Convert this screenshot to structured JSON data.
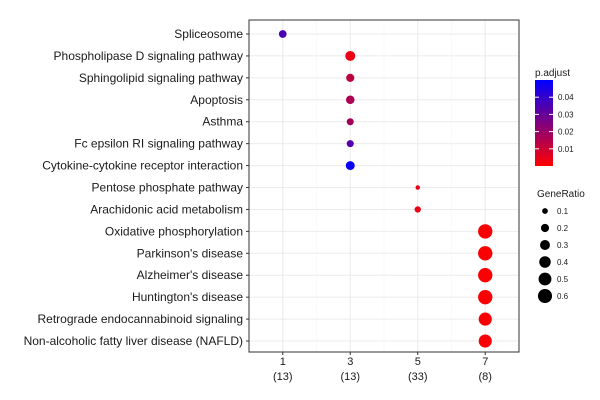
{
  "chart_data": {
    "type": "scatter",
    "categories": [
      "Spliceosome",
      "Phospholipase D signaling pathway",
      "Sphingolipid signaling pathway",
      "Apoptosis",
      "Asthma",
      "Fc epsilon RI signaling pathway",
      "Cytokine-cytokine receptor interaction",
      "Pentose phosphate pathway",
      "Arachidonic acid metabolism",
      "Oxidative phosphorylation",
      "Parkinson's disease",
      "Alzheimer's disease",
      "Huntington's disease",
      "Retrograde endocannabinoid signaling",
      "Non-alcoholic fatty liver disease (NAFLD)"
    ],
    "x_ticks": [
      {
        "line1": "1",
        "line2": "(13)",
        "value": 1
      },
      {
        "line1": "3",
        "line2": "(13)",
        "value": 3
      },
      {
        "line1": "5",
        "line2": "(33)",
        "value": 5
      },
      {
        "line1": "7",
        "line2": "(8)",
        "value": 7
      }
    ],
    "xlim": [
      0,
      8
    ],
    "points": [
      {
        "category": "Spliceosome",
        "x": 1,
        "gene_ratio": 0.18,
        "p_adjust": 0.035
      },
      {
        "category": "Phospholipase D signaling pathway",
        "x": 3,
        "gene_ratio": 0.3,
        "p_adjust": 0.004
      },
      {
        "category": "Sphingolipid signaling pathway",
        "x": 3,
        "gene_ratio": 0.2,
        "p_adjust": 0.013
      },
      {
        "category": "Apoptosis",
        "x": 3,
        "gene_ratio": 0.22,
        "p_adjust": 0.016
      },
      {
        "category": "Asthma",
        "x": 3,
        "gene_ratio": 0.15,
        "p_adjust": 0.018
      },
      {
        "category": "Fc epsilon RI signaling pathway",
        "x": 3,
        "gene_ratio": 0.15,
        "p_adjust": 0.034
      },
      {
        "category": "Cytokine-cytokine receptor interaction",
        "x": 3,
        "gene_ratio": 0.24,
        "p_adjust": 0.048
      },
      {
        "category": "Pentose phosphate pathway",
        "x": 5,
        "gene_ratio": 0.06,
        "p_adjust": 0.004
      },
      {
        "category": "Arachidonic acid metabolism",
        "x": 5,
        "gene_ratio": 0.12,
        "p_adjust": 0.004
      },
      {
        "category": "Oxidative phosphorylation",
        "x": 7,
        "gene_ratio": 0.62,
        "p_adjust": 0.001
      },
      {
        "category": "Parkinson's disease",
        "x": 7,
        "gene_ratio": 0.62,
        "p_adjust": 0.001
      },
      {
        "category": "Alzheimer's disease",
        "x": 7,
        "gene_ratio": 0.62,
        "p_adjust": 0.001
      },
      {
        "category": "Huntington's disease",
        "x": 7,
        "gene_ratio": 0.62,
        "p_adjust": 0.001
      },
      {
        "category": "Retrograde endocannabinoid signaling",
        "x": 7,
        "gene_ratio": 0.52,
        "p_adjust": 0.001
      },
      {
        "category": "Non-alcoholic fatty liver disease (NAFLD)",
        "x": 7,
        "gene_ratio": 0.52,
        "p_adjust": 0.001
      }
    ],
    "color_legend": {
      "title": "p.adjust",
      "range": [
        0,
        0.05
      ],
      "ticks": [
        {
          "label": "0.04",
          "value": 0.04
        },
        {
          "label": "0.03",
          "value": 0.03
        },
        {
          "label": "0.02",
          "value": 0.02
        },
        {
          "label": "0.01",
          "value": 0.01
        }
      ],
      "low_color": "#ff0000",
      "high_color": "#0000ff"
    },
    "size_legend": {
      "title": "GeneRatio",
      "entries": [
        {
          "label": "0.1",
          "value": 0.1
        },
        {
          "label": "0.2",
          "value": 0.2
        },
        {
          "label": "0.3",
          "value": 0.3
        },
        {
          "label": "0.4",
          "value": 0.4
        },
        {
          "label": "0.5",
          "value": 0.5
        },
        {
          "label": "0.6",
          "value": 0.6
        }
      ]
    },
    "grid": true,
    "legend_position": "right"
  }
}
